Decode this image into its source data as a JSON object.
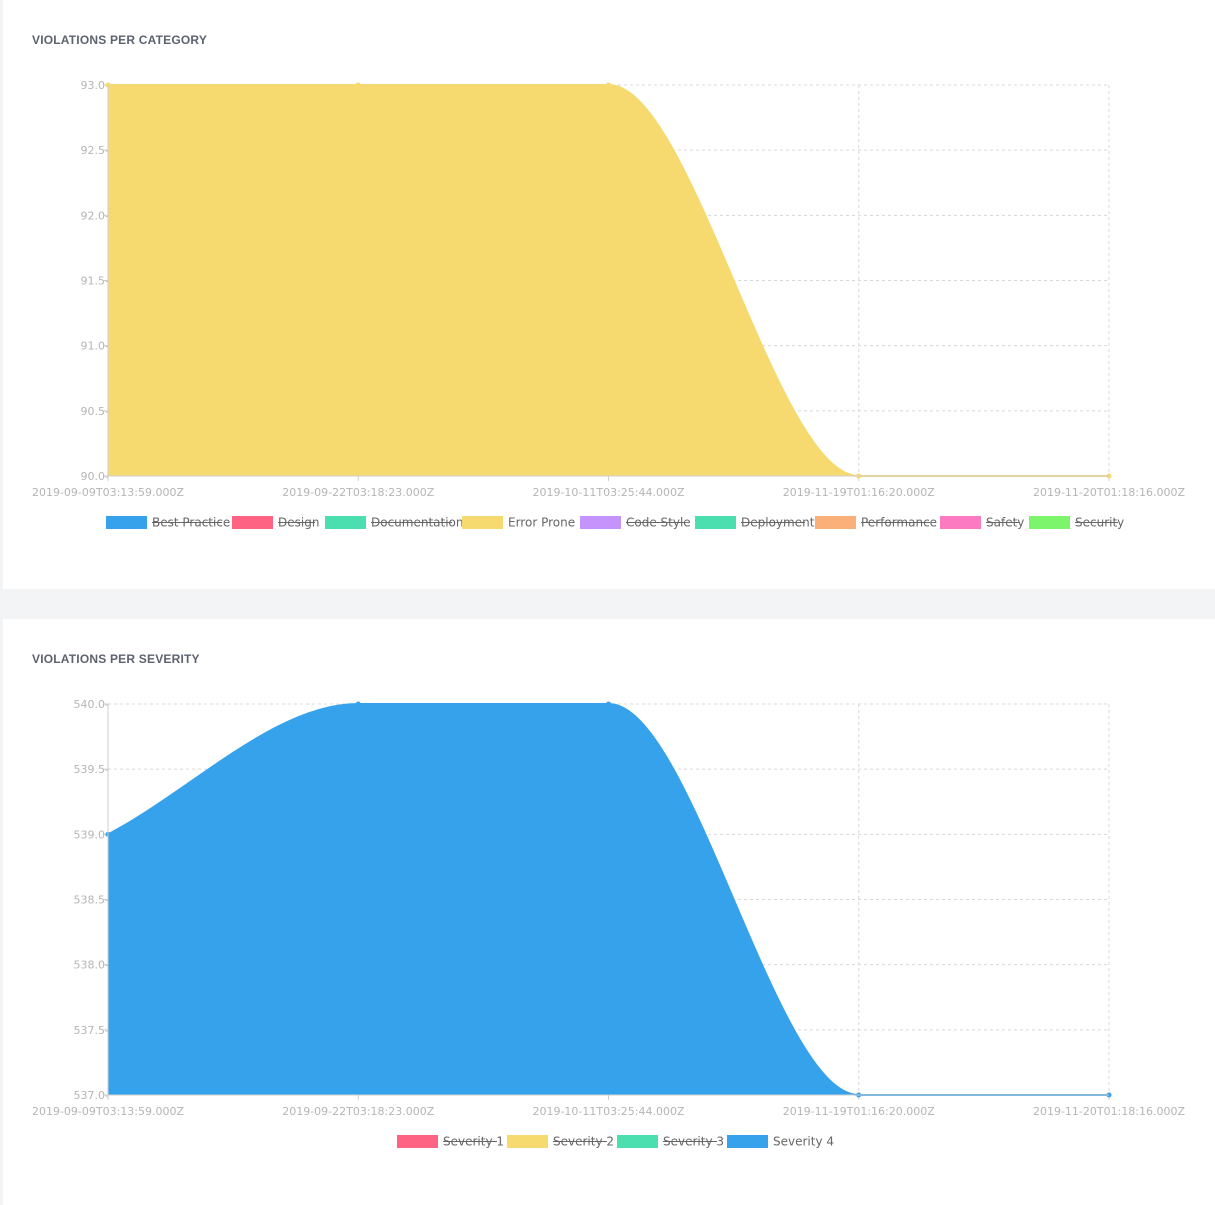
{
  "colors": {
    "blue": "#36a2eb",
    "red": "#ff6384",
    "teal": "#4bdfb0",
    "yellow": "#f6d96f",
    "purple": "#c593fc",
    "orange": "#fbb07a",
    "pink": "#fb7ac0",
    "green": "#7cf56c"
  },
  "chart_data": [
    {
      "id": "category",
      "type": "area",
      "title": "VIOLATIONS PER CATEGORY",
      "x": [
        "2019-09-09T03:13:59.000Z",
        "2019-09-22T03:18:23.000Z",
        "2019-10-11T03:25:44.000Z",
        "2019-11-19T01:16:20.000Z",
        "2019-11-20T01:18:16.000Z"
      ],
      "yticks": [
        "93.0",
        "92.5",
        "92.0",
        "91.5",
        "91.0",
        "90.5",
        "90.0"
      ],
      "ylim": [
        90,
        93
      ],
      "grid": true,
      "legend_position": "bottom",
      "series": [
        {
          "name": "Best Practice",
          "color": "#36a2eb",
          "hidden": true
        },
        {
          "name": "Design",
          "color": "#ff6384",
          "hidden": true
        },
        {
          "name": "Documentation",
          "color": "#4bdfb0",
          "hidden": true
        },
        {
          "name": "Error Prone",
          "color": "#f6d96f",
          "hidden": false,
          "values": [
            93,
            93,
            93,
            90,
            90
          ]
        },
        {
          "name": "Code Style",
          "color": "#c593fc",
          "hidden": true
        },
        {
          "name": "Deployment",
          "color": "#4bdfb0",
          "hidden": true
        },
        {
          "name": "Performance",
          "color": "#fbb07a",
          "hidden": true
        },
        {
          "name": "Safety",
          "color": "#fb7ac0",
          "hidden": true
        },
        {
          "name": "Security",
          "color": "#7cf56c",
          "hidden": true
        }
      ]
    },
    {
      "id": "severity",
      "type": "area",
      "title": "VIOLATIONS PER SEVERITY",
      "x": [
        "2019-09-09T03:13:59.000Z",
        "2019-09-22T03:18:23.000Z",
        "2019-10-11T03:25:44.000Z",
        "2019-11-19T01:16:20.000Z",
        "2019-11-20T01:18:16.000Z"
      ],
      "yticks": [
        "540.0",
        "539.5",
        "539.0",
        "538.5",
        "538.0",
        "537.5",
        "537.0"
      ],
      "ylim": [
        537,
        540
      ],
      "grid": true,
      "legend_position": "bottom",
      "series": [
        {
          "name": "Severity 1",
          "color": "#ff6384",
          "hidden": true
        },
        {
          "name": "Severity 2",
          "color": "#f6d96f",
          "hidden": true
        },
        {
          "name": "Severity 3",
          "color": "#4bdfb0",
          "hidden": true
        },
        {
          "name": "Severity 4",
          "color": "#36a2eb",
          "hidden": false,
          "values": [
            539,
            540,
            540,
            537,
            537
          ]
        }
      ]
    }
  ]
}
